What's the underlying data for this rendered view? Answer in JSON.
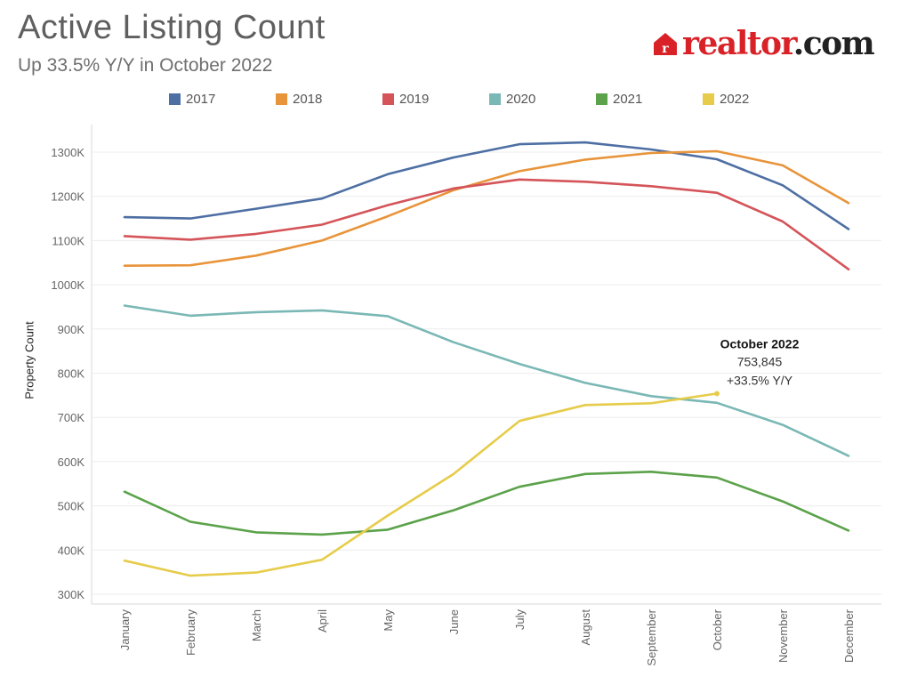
{
  "title": "Active Listing Count",
  "subtitle": "Up 33.5% Y/Y in October 2022",
  "brand": {
    "text_part1": "realtor",
    "text_part2": ".com",
    "icon": "realtor-house-icon",
    "color": "#d92228"
  },
  "chart_data": {
    "type": "line",
    "title": "Active Listing Count",
    "subtitle": "Up 33.5% Y/Y in October 2022",
    "xlabel": "",
    "ylabel": "Property Count",
    "ylim": [
      280000,
      1340000
    ],
    "yticks": [
      300000,
      400000,
      500000,
      600000,
      700000,
      800000,
      900000,
      1000000,
      1100000,
      1200000,
      1300000
    ],
    "ytick_labels": [
      "300K",
      "400K",
      "500K",
      "600K",
      "700K",
      "800K",
      "900K",
      "1000K",
      "1100K",
      "1200K",
      "1300K"
    ],
    "grid": true,
    "legend_position": "top",
    "categories": [
      "January",
      "February",
      "March",
      "April",
      "May",
      "June",
      "July",
      "August",
      "September",
      "October",
      "November",
      "December"
    ],
    "series": [
      {
        "name": "2017",
        "color": "#4e6fa3",
        "values": [
          1153000,
          1150000,
          1172000,
          1195000,
          1250000,
          1288000,
          1318000,
          1322000,
          1306000,
          1284000,
          1225000,
          1126000
        ]
      },
      {
        "name": "2018",
        "color": "#e8943a",
        "values": [
          1043000,
          1044000,
          1066000,
          1100000,
          1155000,
          1214000,
          1257000,
          1283000,
          1298000,
          1302000,
          1270000,
          1185000
        ]
      },
      {
        "name": "2019",
        "color": "#d45459",
        "values": [
          1110000,
          1102000,
          1115000,
          1136000,
          1180000,
          1218000,
          1238000,
          1233000,
          1223000,
          1208000,
          1143000,
          1035000
        ]
      },
      {
        "name": "2020",
        "color": "#7ab8b5",
        "values": [
          953000,
          930000,
          938000,
          942000,
          929000,
          870000,
          821000,
          778000,
          748000,
          733000,
          683000,
          613000
        ]
      },
      {
        "name": "2021",
        "color": "#5ba24a",
        "values": [
          532000,
          464000,
          440000,
          435000,
          446000,
          490000,
          543000,
          572000,
          577000,
          564000,
          510000,
          444000
        ]
      },
      {
        "name": "2022",
        "color": "#e6cc4a",
        "values": [
          376000,
          342000,
          349000,
          378000,
          478000,
          572000,
          692000,
          728000,
          732000,
          753845,
          null,
          null
        ]
      }
    ],
    "annotation": {
      "series": "2022",
      "category": "October",
      "lines": [
        "October 2022",
        "753,845",
        "+33.5% Y/Y"
      ]
    }
  }
}
